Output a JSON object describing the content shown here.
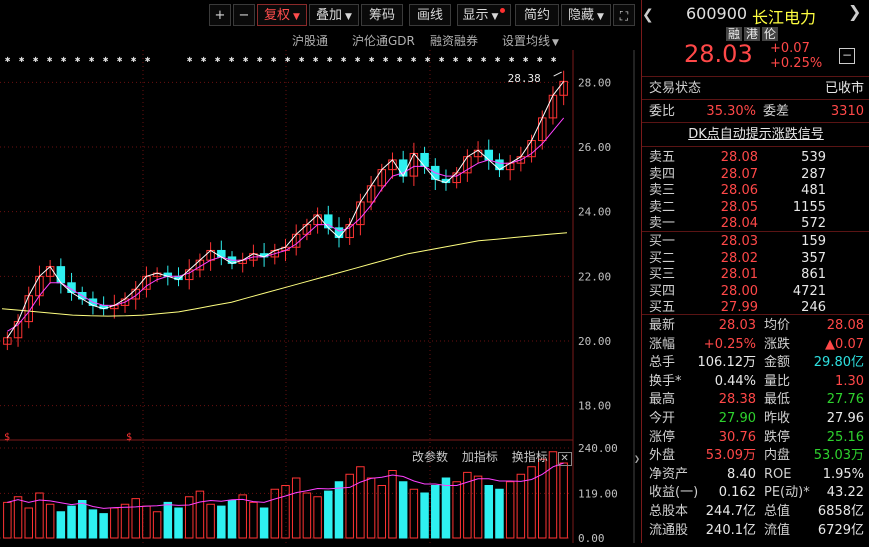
{
  "toolbar": {
    "plus": "+",
    "minus": "−",
    "fuquan": "复权",
    "diejia": "叠加",
    "chouma": "筹码",
    "huaxian": "画线",
    "xianshi": "显示",
    "jianyue": "简约",
    "yincang": "隐藏",
    "fullscreen_icon": "expand-icon"
  },
  "subtabs": [
    "沪股通",
    "沪伦通GDR",
    "融资融券",
    "设置均线"
  ],
  "chart": {
    "y_ticks": [
      "28.00",
      "26.00",
      "24.00",
      "22.00",
      "20.00",
      "18.00"
    ],
    "high_label": "28.38",
    "volume_ticks": [
      "240.00",
      "119.00",
      "0.00"
    ],
    "volume_tools": [
      "改参数",
      "加指标",
      "换指标"
    ],
    "marker": "$",
    "colors": {
      "up": "#ff3333",
      "down": "#2ef0f0",
      "ma5": "#ffffff",
      "ma10": "#ff40ff",
      "ma_long": "#ffff80"
    }
  },
  "chart_data": {
    "type": "line",
    "price_range": [
      17.0,
      29.0
    ],
    "high": 28.38,
    "series": [
      {
        "values": [
          20.1,
          20.6,
          21.4,
          22.0,
          22.3,
          21.8,
          21.5,
          21.3,
          21.1,
          21.0,
          21.1,
          21.3,
          21.6,
          22.0,
          22.1,
          22.0,
          21.9,
          22.2,
          22.5,
          22.8,
          22.6,
          22.4,
          22.5,
          22.7,
          22.6,
          22.8,
          22.9,
          23.3,
          23.6,
          23.9,
          23.5,
          23.2,
          23.6,
          24.3,
          24.8,
          25.3,
          25.6,
          25.1,
          25.8,
          25.4,
          25.0,
          24.9,
          25.2,
          25.7,
          25.9,
          25.6,
          25.3,
          25.5,
          25.7,
          26.2,
          26.9,
          27.6,
          28.03
        ]
      },
      {
        "values": [
          20.3,
          20.5,
          20.9,
          21.4,
          21.8,
          21.8,
          21.6,
          21.4,
          21.2,
          21.1,
          21.1,
          21.2,
          21.4,
          21.7,
          21.9,
          22.0,
          22.0,
          22.1,
          22.3,
          22.5,
          22.6,
          22.5,
          22.5,
          22.6,
          22.6,
          22.7,
          22.8,
          23.0,
          23.3,
          23.6,
          23.6,
          23.4,
          23.5,
          23.8,
          24.2,
          24.7,
          25.1,
          25.2,
          25.4,
          25.4,
          25.2,
          25.1,
          25.1,
          25.3,
          25.5,
          25.6,
          25.5,
          25.5,
          25.6,
          25.8,
          26.1,
          26.5,
          26.9
        ]
      },
      {
        "values": [
          21.0,
          20.95,
          20.9,
          20.85,
          20.8,
          20.78,
          20.77,
          20.78,
          20.8,
          20.85,
          20.9,
          21.0,
          21.1,
          21.2,
          21.35,
          21.5,
          21.65,
          21.8,
          21.95,
          22.1,
          22.25,
          22.4,
          22.55,
          22.7,
          22.8,
          22.9,
          23.0,
          23.1,
          23.15,
          23.2,
          23.25,
          23.3,
          23.35
        ]
      }
    ],
    "volume_range": [
      0,
      240
    ],
    "volume": [
      95,
      110,
      80,
      120,
      90,
      70,
      85,
      100,
      75,
      65,
      80,
      90,
      105,
      85,
      70,
      95,
      80,
      110,
      125,
      90,
      85,
      100,
      115,
      95,
      80,
      130,
      140,
      160,
      120,
      110,
      125,
      150,
      170,
      190,
      160,
      140,
      180,
      150,
      130,
      120,
      140,
      160,
      150,
      175,
      165,
      140,
      130,
      150,
      170,
      190,
      210,
      230,
      200
    ]
  },
  "quote": {
    "code": "600900",
    "name": "长江电力",
    "tags": [
      "融",
      "港",
      "伦"
    ],
    "price": "28.03",
    "change": "+0.07",
    "change_pct": "+0.25%",
    "status_label": "交易状态",
    "status_value": "已收市",
    "weibi_label": "委比",
    "weibi_value": "35.30%",
    "weicha_label": "委差",
    "weicha_value": "3310",
    "dk_signal": "DK点自动提示涨跌信号"
  },
  "orderbook": {
    "asks": [
      {
        "label": "卖五",
        "price": "28.08",
        "qty": "539"
      },
      {
        "label": "卖四",
        "price": "28.07",
        "qty": "287"
      },
      {
        "label": "卖三",
        "price": "28.06",
        "qty": "481"
      },
      {
        "label": "卖二",
        "price": "28.05",
        "qty": "1155"
      },
      {
        "label": "卖一",
        "price": "28.04",
        "qty": "572"
      }
    ],
    "bids": [
      {
        "label": "买一",
        "price": "28.03",
        "qty": "159"
      },
      {
        "label": "买二",
        "price": "28.02",
        "qty": "357"
      },
      {
        "label": "买三",
        "price": "28.01",
        "qty": "861"
      },
      {
        "label": "买四",
        "price": "28.00",
        "qty": "4721"
      },
      {
        "label": "买五",
        "price": "27.99",
        "qty": "246"
      }
    ]
  },
  "stats": [
    {
      "l1": "最新",
      "v1": "28.03",
      "c1": "red",
      "l2": "均价",
      "v2": "28.08",
      "c2": "red"
    },
    {
      "l1": "涨幅",
      "v1": "+0.25%",
      "c1": "red",
      "l2": "涨跌",
      "v2": "▲0.07",
      "c2": "red"
    },
    {
      "l1": "总手",
      "v1": "106.12万",
      "c1": "white",
      "l2": "金额",
      "v2": "29.80亿",
      "c2": "cyan"
    },
    {
      "l1": "换手*",
      "v1": "0.44%",
      "c1": "white",
      "l2": "量比",
      "v2": "1.30",
      "c2": "red"
    },
    {
      "l1": "最高",
      "v1": "28.38",
      "c1": "red",
      "l2": "最低",
      "v2": "27.76",
      "c2": "green"
    },
    {
      "l1": "今开",
      "v1": "27.90",
      "c1": "green",
      "l2": "昨收",
      "v2": "27.96",
      "c2": "white"
    },
    {
      "l1": "涨停",
      "v1": "30.76",
      "c1": "red",
      "l2": "跌停",
      "v2": "25.16",
      "c2": "green"
    },
    {
      "l1": "外盘",
      "v1": "53.09万",
      "c1": "red",
      "l2": "内盘",
      "v2": "53.03万",
      "c2": "green"
    },
    {
      "l1": "净资产",
      "v1": "8.40",
      "c1": "white",
      "l2": "ROE",
      "v2": "1.95%",
      "c2": "white"
    },
    {
      "l1": "收益(一)",
      "v1": "0.162",
      "c1": "white",
      "l2": "PE(动)*",
      "v2": "43.22",
      "c2": "white"
    },
    {
      "l1": "总股本",
      "v1": "244.7亿",
      "c1": "white",
      "l2": "总值",
      "v2": "6858亿",
      "c2": "white"
    },
    {
      "l1": "流通股",
      "v1": "240.1亿",
      "c1": "white",
      "l2": "流值",
      "v2": "6729亿",
      "c2": "white"
    }
  ]
}
